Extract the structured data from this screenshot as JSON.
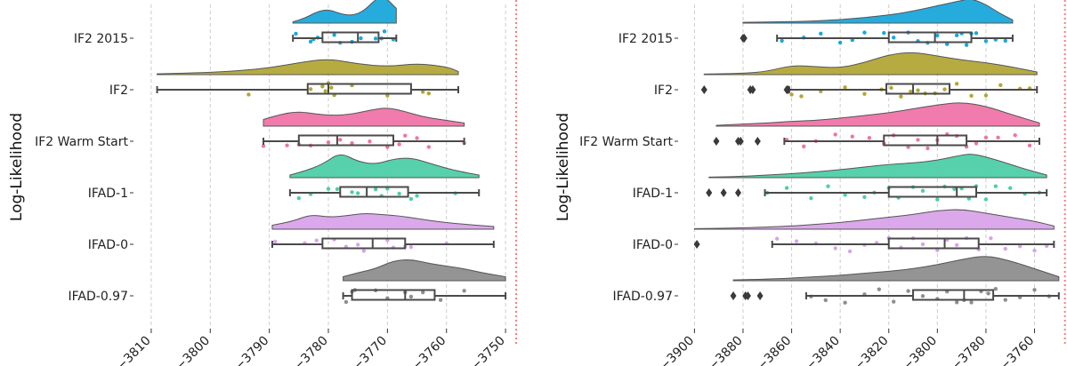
{
  "colors": {
    "IF2 2015": "#1aa7db",
    "IF2": "#b2a637",
    "IF2 Warm Start": "#ef74a8",
    "IFAD-1": "#4dcfa6",
    "IFAD-0": "#d9a3ea",
    "IFAD-0.97": "#8e8e8e",
    "reference_line": "#f08080",
    "grid": "#cccccc",
    "box": "#4a4a4a"
  },
  "chart_data": [
    {
      "type": "raincloud",
      "ylabel": "Log-Likelihood",
      "xlim": [
        -3813,
        -3747
      ],
      "xticks": [
        -3810,
        -3800,
        -3790,
        -3780,
        -3770,
        -3760,
        -3750
      ],
      "xtick_labels": [
        "−3810",
        "−3800",
        "−3790",
        "−3780",
        "−3770",
        "−3760",
        "−3750"
      ],
      "reference_line": -3748.2,
      "grid": "vertical dashed",
      "categories": [
        "IF2 2015",
        "IF2",
        "IF2 Warm Start",
        "IFAD-1",
        "IFAD-0",
        "IFAD-0.97"
      ],
      "series": [
        {
          "name": "IF2 2015",
          "box": {
            "whislo": -3786,
            "q1": -3781,
            "med": -3775,
            "q3": -3771.5,
            "whishi": -3768.5
          },
          "density_x": [
            -3786,
            -3784,
            -3782,
            -3780,
            -3778,
            -3776,
            -3774,
            -3772,
            -3770.5,
            -3768.5
          ],
          "density_y": [
            0.05,
            0.18,
            0.42,
            0.52,
            0.35,
            0.28,
            0.45,
            0.9,
            1.0,
            0.55
          ],
          "points": [
            -3785.5,
            -3783,
            -3782.5,
            -3781.8,
            -3779,
            -3778,
            -3776,
            -3774.5,
            -3772,
            -3771,
            -3770.5,
            -3769
          ]
        },
        {
          "name": "IF2",
          "box": {
            "whislo": -3809,
            "q1": -3783.5,
            "med": -3780,
            "q3": -3766,
            "whishi": -3758
          },
          "density_x": [
            -3809,
            -3800,
            -3795,
            -3790,
            -3785,
            -3780,
            -3775,
            -3770,
            -3765,
            -3760,
            -3758
          ],
          "density_y": [
            0.03,
            0.08,
            0.15,
            0.25,
            0.45,
            0.6,
            0.4,
            0.3,
            0.42,
            0.3,
            0.12
          ],
          "points": [
            -3793.5,
            -3783,
            -3781,
            -3780.5,
            -3780,
            -3779.5,
            -3779,
            -3776,
            -3770,
            -3764,
            -3763
          ]
        },
        {
          "name": "IF2 Warm Start",
          "box": {
            "whislo": -3791,
            "q1": -3785,
            "med": -3778.5,
            "q3": -3769,
            "whishi": -3757
          },
          "density_x": [
            -3791,
            -3788,
            -3785,
            -3782,
            -3779,
            -3776,
            -3773,
            -3770,
            -3767,
            -3764,
            -3761,
            -3757
          ],
          "density_y": [
            0.25,
            0.45,
            0.55,
            0.45,
            0.4,
            0.45,
            0.6,
            0.7,
            0.55,
            0.35,
            0.25,
            0.12
          ],
          "points": [
            -3791,
            -3787,
            -3785,
            -3783,
            -3780,
            -3778,
            -3776,
            -3773,
            -3770,
            -3768,
            -3767,
            -3765,
            -3763,
            -3757
          ]
        },
        {
          "name": "IFAD-1",
          "box": {
            "whislo": -3786.5,
            "q1": -3778,
            "med": -3773.5,
            "q3": -3766.5,
            "whishi": -3754.5
          },
          "density_x": [
            -3786.5,
            -3784,
            -3781,
            -3778,
            -3775,
            -3772,
            -3769,
            -3766,
            -3763,
            -3760,
            -3757,
            -3754.5
          ],
          "density_y": [
            0.1,
            0.25,
            0.5,
            0.95,
            0.6,
            0.5,
            0.7,
            0.75,
            0.55,
            0.35,
            0.2,
            0.1
          ],
          "points": [
            -3785,
            -3783,
            -3780,
            -3778.5,
            -3776,
            -3775,
            -3772,
            -3771,
            -3770,
            -3768,
            -3766,
            -3765,
            -3758.5
          ]
        },
        {
          "name": "IFAD-0",
          "box": {
            "whislo": -3789.5,
            "q1": -3781,
            "med": -3772.5,
            "q3": -3767,
            "whishi": -3752
          },
          "density_x": [
            -3789.5,
            -3786,
            -3783,
            -3780,
            -3777,
            -3774,
            -3771,
            -3768,
            -3765,
            -3762,
            -3758,
            -3752
          ],
          "density_y": [
            0.15,
            0.3,
            0.55,
            0.45,
            0.5,
            0.6,
            0.55,
            0.5,
            0.4,
            0.3,
            0.2,
            0.1
          ],
          "points": [
            -3789,
            -3784,
            -3782,
            -3779,
            -3777,
            -3775,
            -3774,
            -3770,
            -3769,
            -3767,
            -3766,
            -3760
          ]
        },
        {
          "name": "IFAD-0.97",
          "box": {
            "whislo": -3777.5,
            "q1": -3776,
            "med": -3767,
            "q3": -3762,
            "whishi": -3750
          },
          "density_x": [
            -3777.5,
            -3775,
            -3772,
            -3769,
            -3766,
            -3763,
            -3760,
            -3757,
            -3754,
            -3750
          ],
          "density_y": [
            0.15,
            0.3,
            0.45,
            0.75,
            0.8,
            0.65,
            0.55,
            0.45,
            0.3,
            0.15
          ],
          "points": [
            -3777,
            -3776,
            -3775.5,
            -3772,
            -3770,
            -3767,
            -3766,
            -3764,
            -3761,
            -3757
          ]
        }
      ]
    },
    {
      "type": "raincloud",
      "ylabel": "Log-Likelihood",
      "xlim": [
        -3906,
        -3747
      ],
      "xticks": [
        -3900,
        -3880,
        -3860,
        -3840,
        -3820,
        -3800,
        -3780,
        -3760
      ],
      "xtick_labels": [
        "−3900",
        "−3880",
        "−3860",
        "−3840",
        "−3820",
        "−3800",
        "−3780",
        "−3760"
      ],
      "reference_line": -3747.5,
      "grid": "vertical dashed",
      "categories": [
        "IF2 2015",
        "IF2",
        "IF2 Warm Start",
        "IFAD-1",
        "IFAD-0",
        "IFAD-0.97"
      ],
      "series": [
        {
          "name": "IF2 2015",
          "box": {
            "whislo": -3866,
            "q1": -3820,
            "med": -3801,
            "q3": -3786,
            "whishi": -3769
          },
          "outliers": [
            -3880,
            -3879.5
          ],
          "density_x": [
            -3880,
            -3860,
            -3840,
            -3820,
            -3810,
            -3800,
            -3790,
            -3786,
            -3780,
            -3775,
            -3769
          ],
          "density_y": [
            0.03,
            0.05,
            0.12,
            0.3,
            0.45,
            0.65,
            0.85,
            0.92,
            0.7,
            0.4,
            0.12
          ],
          "points": [
            -3864,
            -3855,
            -3848,
            -3840,
            -3835,
            -3830,
            -3822,
            -3818,
            -3812,
            -3808,
            -3804,
            -3800,
            -3796,
            -3792,
            -3790,
            -3788,
            -3786,
            -3784,
            -3780,
            -3776,
            -3772
          ]
        },
        {
          "name": "IF2",
          "box": {
            "whislo": -3861,
            "q1": -3821,
            "med": -3810,
            "q3": -3795,
            "whishi": -3759
          },
          "outliers": [
            -3896,
            -3877,
            -3876,
            -3862,
            -3861.5
          ],
          "density_x": [
            -3896,
            -3880,
            -3870,
            -3860,
            -3850,
            -3840,
            -3830,
            -3820,
            -3810,
            -3800,
            -3790,
            -3780,
            -3770,
            -3759
          ],
          "density_y": [
            0.02,
            0.05,
            0.12,
            0.35,
            0.3,
            0.25,
            0.45,
            0.75,
            0.85,
            0.7,
            0.55,
            0.45,
            0.3,
            0.1
          ],
          "points": [
            -3860,
            -3856,
            -3848,
            -3838,
            -3830,
            -3823,
            -3819,
            -3815,
            -3811,
            -3808,
            -3805,
            -3801,
            -3797,
            -3792,
            -3786,
            -3780,
            -3774,
            -3766,
            -3762
          ]
        },
        {
          "name": "IF2 Warm Start",
          "box": {
            "whislo": -3863,
            "q1": -3822,
            "med": -3800,
            "q3": -3788,
            "whishi": -3758
          },
          "outliers": [
            -3891,
            -3882,
            -3881,
            -3874
          ],
          "density_x": [
            -3891,
            -3880,
            -3870,
            -3860,
            -3850,
            -3840,
            -3830,
            -3820,
            -3810,
            -3800,
            -3790,
            -3780,
            -3770,
            -3758
          ],
          "density_y": [
            0.03,
            0.08,
            0.12,
            0.18,
            0.22,
            0.3,
            0.4,
            0.5,
            0.65,
            0.8,
            0.9,
            0.75,
            0.45,
            0.12
          ],
          "points": [
            -3862,
            -3855,
            -3850,
            -3842,
            -3835,
            -3828,
            -3822,
            -3818,
            -3812,
            -3808,
            -3804,
            -3800,
            -3796,
            -3792,
            -3788,
            -3784,
            -3780,
            -3775,
            -3768,
            -3762
          ]
        },
        {
          "name": "IFAD-1",
          "box": {
            "whislo": -3871,
            "q1": -3820,
            "med": -3792,
            "q3": -3784,
            "whishi": -3755
          },
          "outliers": [
            -3894,
            -3888,
            -3882
          ],
          "density_x": [
            -3894,
            -3880,
            -3870,
            -3860,
            -3850,
            -3840,
            -3830,
            -3820,
            -3810,
            -3800,
            -3790,
            -3785,
            -3775,
            -3765,
            -3755
          ],
          "density_y": [
            0.02,
            0.05,
            0.1,
            0.15,
            0.22,
            0.3,
            0.4,
            0.5,
            0.55,
            0.65,
            0.85,
            0.9,
            0.65,
            0.35,
            0.1
          ],
          "points": [
            -3870,
            -3862,
            -3852,
            -3845,
            -3838,
            -3830,
            -3826,
            -3820,
            -3816,
            -3810,
            -3806,
            -3800,
            -3797,
            -3793,
            -3790,
            -3787,
            -3784,
            -3780,
            -3776,
            -3770,
            -3764,
            -3758
          ]
        },
        {
          "name": "IFAD-0",
          "box": {
            "whislo": -3868,
            "q1": -3820,
            "med": -3797,
            "q3": -3783,
            "whishi": -3752
          },
          "outliers": [
            -3899
          ],
          "density_x": [
            -3900,
            -3885,
            -3870,
            -3860,
            -3850,
            -3840,
            -3830,
            -3820,
            -3810,
            -3800,
            -3790,
            -3780,
            -3770,
            -3760,
            -3752
          ],
          "density_y": [
            0.02,
            0.04,
            0.08,
            0.12,
            0.18,
            0.25,
            0.35,
            0.45,
            0.55,
            0.7,
            0.75,
            0.6,
            0.45,
            0.3,
            0.12
          ],
          "points": [
            -3866,
            -3858,
            -3850,
            -3842,
            -3836,
            -3830,
            -3825,
            -3820,
            -3815,
            -3810,
            -3806,
            -3800,
            -3796,
            -3792,
            -3788,
            -3783,
            -3778,
            -3772,
            -3766,
            -3760,
            -3755
          ]
        },
        {
          "name": "IFAD-0.97",
          "box": {
            "whislo": -3854,
            "q1": -3810,
            "med": -3789,
            "q3": -3777,
            "whishi": -3750
          },
          "outliers": [
            -3884,
            -3879,
            -3878,
            -3873
          ],
          "density_x": [
            -3884,
            -3870,
            -3860,
            -3850,
            -3840,
            -3830,
            -3820,
            -3810,
            -3800,
            -3790,
            -3780,
            -3770,
            -3760,
            -3750
          ],
          "density_y": [
            0.03,
            0.06,
            0.1,
            0.15,
            0.2,
            0.28,
            0.35,
            0.45,
            0.6,
            0.8,
            0.95,
            0.75,
            0.45,
            0.15
          ],
          "points": [
            -3852,
            -3846,
            -3838,
            -3830,
            -3824,
            -3818,
            -3812,
            -3806,
            -3800,
            -3796,
            -3792,
            -3789,
            -3786,
            -3782,
            -3779,
            -3776,
            -3772,
            -3766,
            -3760,
            -3754
          ]
        }
      ]
    }
  ]
}
